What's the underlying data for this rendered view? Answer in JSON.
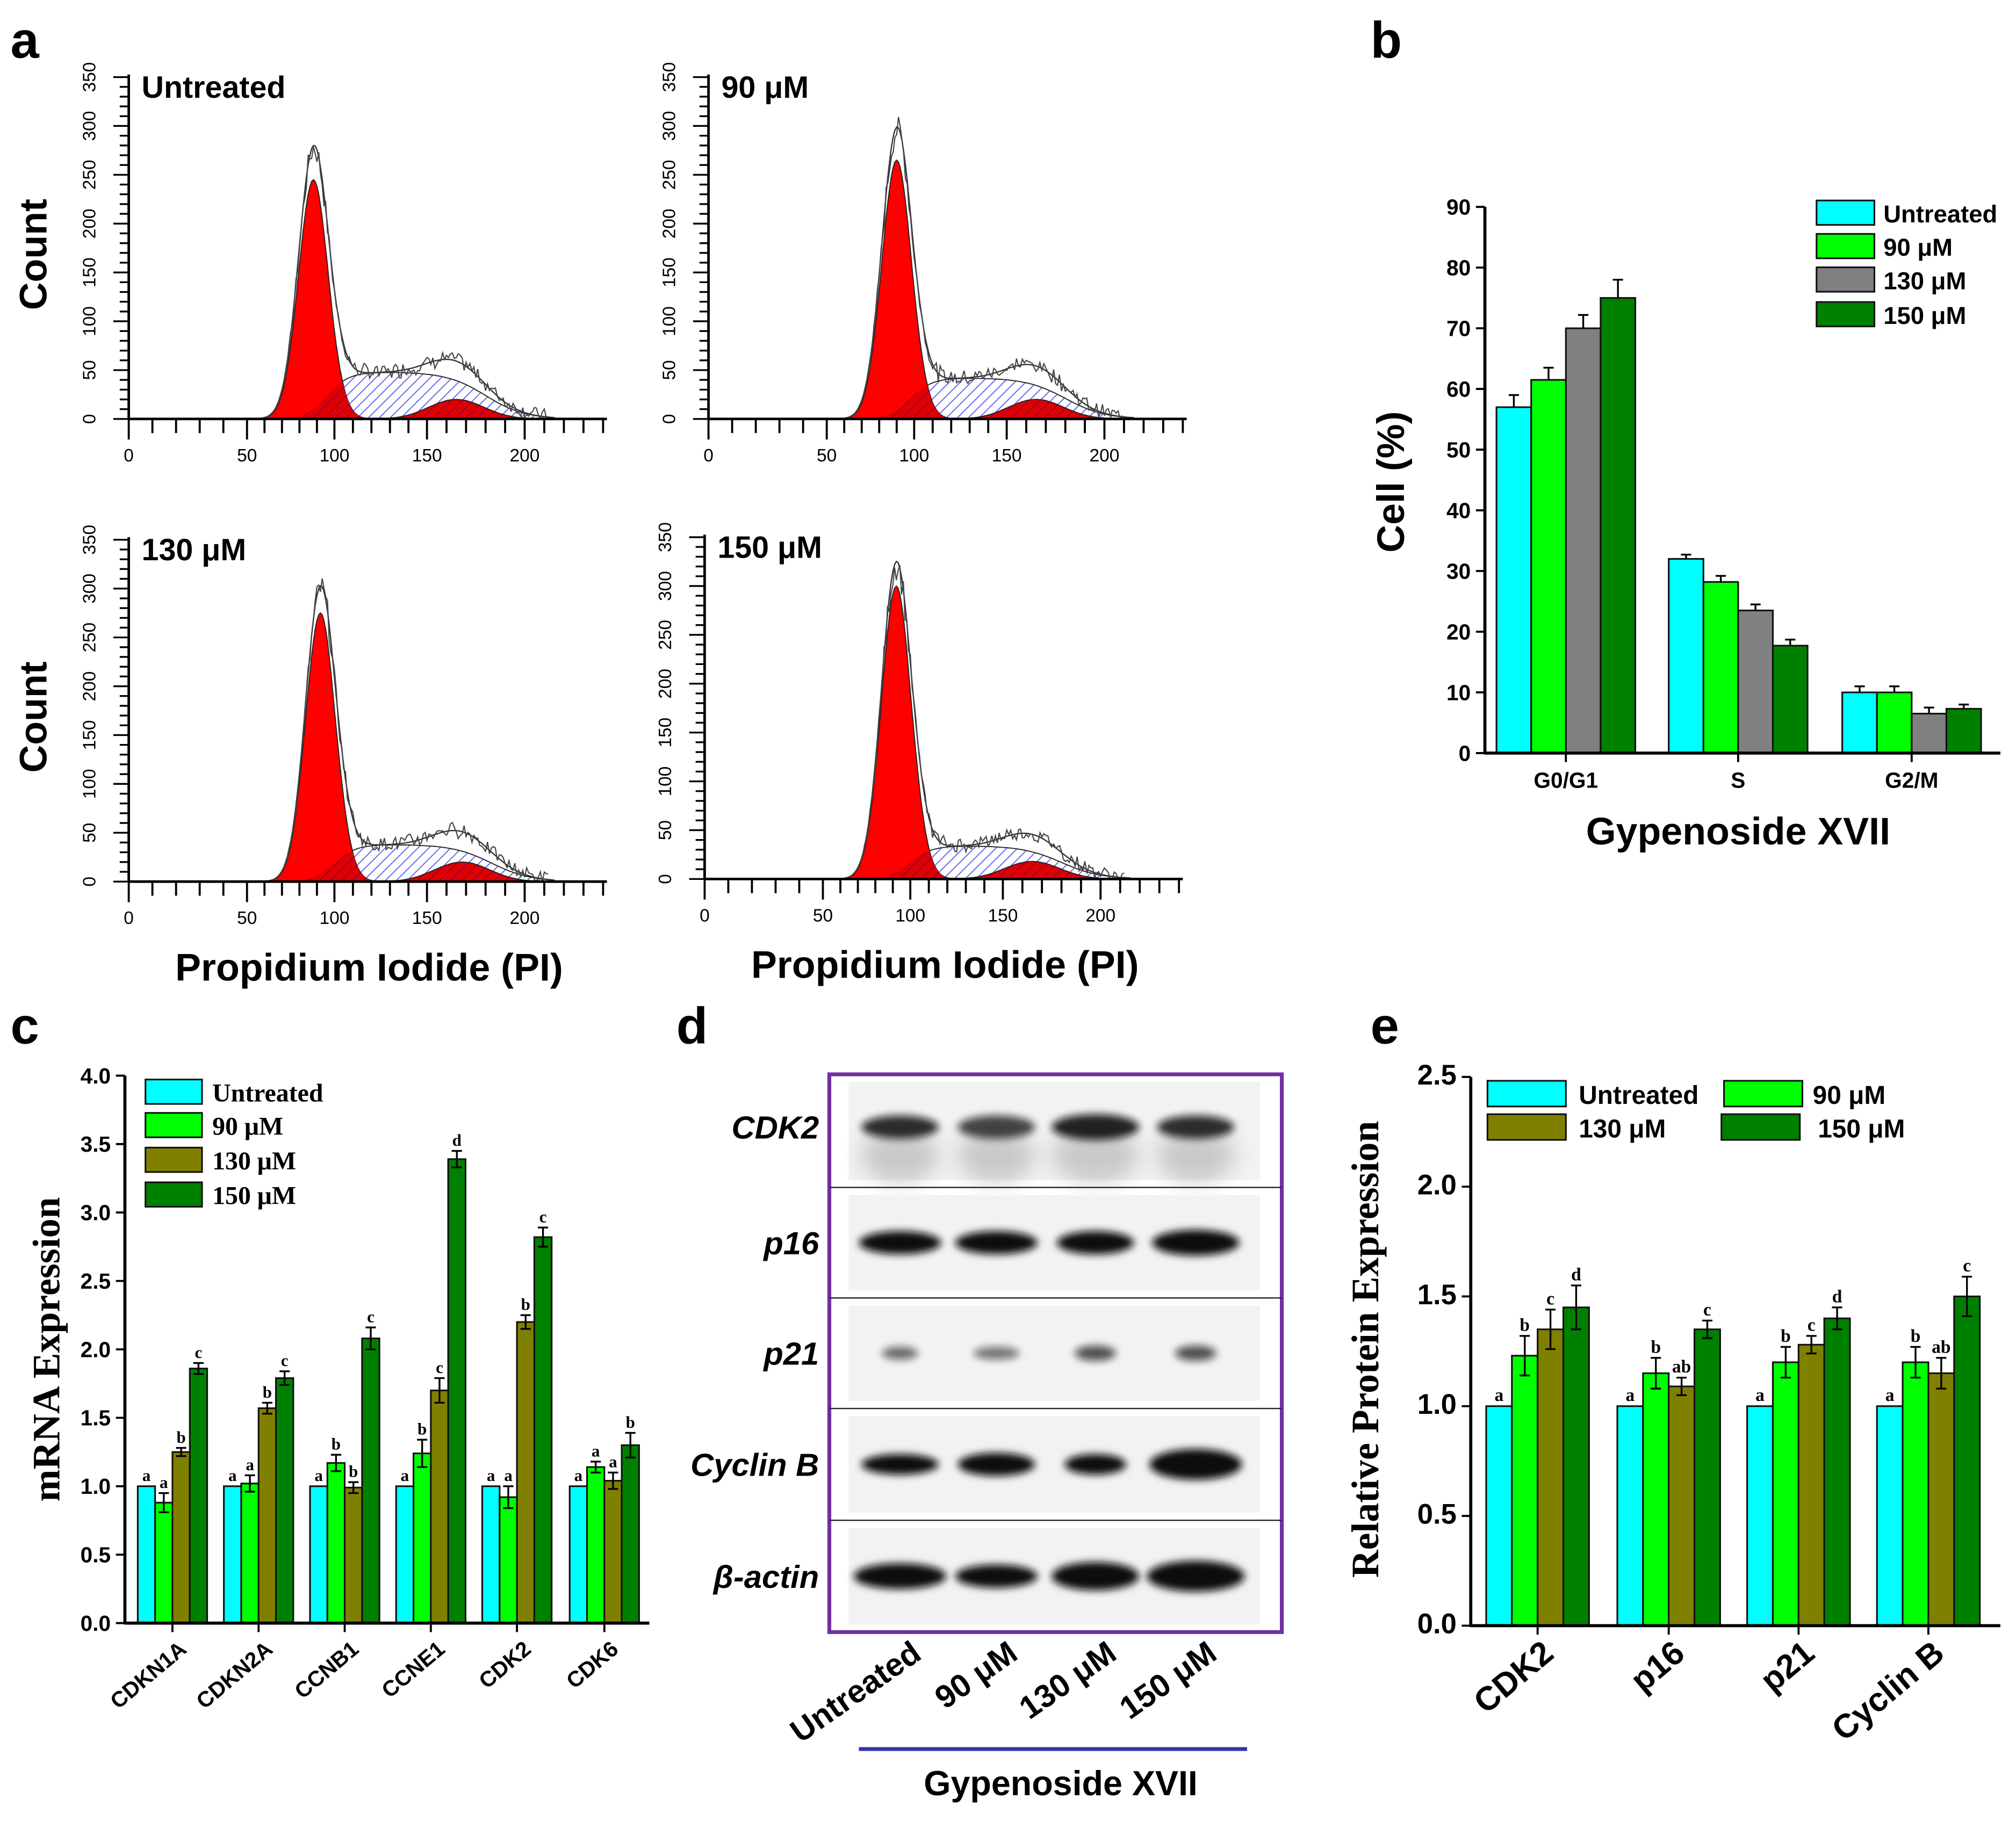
{
  "panel_letters": [
    "a",
    "b",
    "c",
    "d",
    "e"
  ],
  "colors": {
    "untreated": "#00FFFF",
    "c90": "#00FF00",
    "c130_gray": "#808080",
    "c130_olive": "#808000",
    "c150": "#008000",
    "g1_fill": "#FF0000",
    "s_hatch": "#6666EE",
    "blot_frame": "#7030A0",
    "underline": "#3333AA"
  },
  "chart_data": [
    {
      "id": "a",
      "type": "histogram",
      "xlabel": "Propidium Iodide (PI)",
      "ylabel": "Count",
      "xticks": [
        "0",
        "50",
        "100",
        "150",
        "200"
      ],
      "yticks": [
        "0",
        "50",
        "100",
        "150",
        "200",
        "250",
        "300",
        "350"
      ],
      "xlim": [
        0,
        240
      ],
      "ylim": [
        0,
        350
      ],
      "panels": [
        {
          "title": "Untreated",
          "g1_peak_channel": 88,
          "g1_count": 245,
          "envelope_peak": 270,
          "s_count": 48,
          "g2_peak_channel": 165,
          "g2_count": 20
        },
        {
          "title": "90 μM",
          "g1_peak_channel": 90,
          "g1_count": 265,
          "envelope_peak": 290,
          "s_count": 42,
          "g2_peak_channel": 165,
          "g2_count": 20
        },
        {
          "title": "130 μM",
          "g1_peak_channel": 92,
          "g1_count": 275,
          "envelope_peak": 295,
          "s_count": 38,
          "g2_peak_channel": 168,
          "g2_count": 20
        },
        {
          "title": "150 μM",
          "g1_peak_channel": 92,
          "g1_count": 300,
          "envelope_peak": 318,
          "s_count": 34,
          "g2_peak_channel": 165,
          "g2_count": 18
        }
      ]
    },
    {
      "id": "b",
      "type": "bar",
      "title": "",
      "xlabel": "Gypenoside XVII",
      "ylabel": "Cell (%)",
      "ylim": [
        0,
        90
      ],
      "yticks": [
        "0",
        "10",
        "20",
        "30",
        "40",
        "50",
        "60",
        "70",
        "80",
        "90"
      ],
      "categories": [
        "G0/G1",
        "S",
        "G2/M"
      ],
      "legend_position": "top-right",
      "series": [
        {
          "name": "Untreated",
          "values": [
            57,
            32,
            10
          ],
          "errors": [
            2,
            0.7,
            1
          ]
        },
        {
          "name": "90 μM",
          "values": [
            61.5,
            28.2,
            10
          ],
          "errors": [
            2,
            1,
            1
          ]
        },
        {
          "name": "130 μM",
          "values": [
            70,
            23.5,
            6.5
          ],
          "errors": [
            2.2,
            1,
            1
          ]
        },
        {
          "name": "150 μM",
          "values": [
            75,
            17.7,
            7.3
          ],
          "errors": [
            3,
            1,
            0.7
          ]
        }
      ]
    },
    {
      "id": "c",
      "type": "bar",
      "xlabel": "",
      "ylabel": "mRNA Expression",
      "ylim": [
        0,
        4
      ],
      "yticks": [
        "0.0",
        "0.5",
        "1.0",
        "1.5",
        "2.0",
        "2.5",
        "3.0",
        "3.5",
        "4.0"
      ],
      "categories": [
        "CDKN1A",
        "CDKN2A",
        "CCNB1",
        "CCNE1",
        "CDK2",
        "CDK6"
      ],
      "legend_position": "top-left",
      "series": [
        {
          "name": "Untreated",
          "values": [
            1.0,
            1.0,
            1.0,
            1.0,
            1.0,
            1.0
          ],
          "errors": [
            0,
            0,
            0,
            0,
            0,
            0
          ],
          "letters": [
            "a",
            "a",
            "a",
            "a",
            "a",
            "a"
          ]
        },
        {
          "name": "90 μM",
          "values": [
            0.88,
            1.02,
            1.17,
            1.24,
            0.92,
            1.14
          ],
          "errors": [
            0.07,
            0.06,
            0.06,
            0.1,
            0.08,
            0.04
          ],
          "letters": [
            "a",
            "a",
            "b",
            "b",
            "a",
            "a"
          ]
        },
        {
          "name": "130 μM",
          "values": [
            1.25,
            1.57,
            0.99,
            1.7,
            2.2,
            1.04
          ],
          "errors": [
            0.03,
            0.04,
            0.04,
            0.09,
            0.05,
            0.06
          ],
          "letters": [
            "b",
            "b",
            "b",
            "c",
            "b",
            "a"
          ]
        },
        {
          "name": "150 μM",
          "values": [
            1.86,
            1.79,
            2.08,
            3.39,
            2.82,
            1.3
          ],
          "errors": [
            0.04,
            0.05,
            0.08,
            0.06,
            0.07,
            0.09
          ],
          "letters": [
            "c",
            "c",
            "c",
            "d",
            "c",
            "b"
          ]
        }
      ]
    },
    {
      "id": "d",
      "type": "western_blot",
      "proteins": [
        "CDK2",
        "p16",
        "p21",
        "Cyclin B",
        "β-actin"
      ],
      "lanes": [
        "Untreated",
        "90 μM",
        "130 μM",
        "150 μM"
      ],
      "treatment_label": "Gypenoside XVII"
    },
    {
      "id": "e",
      "type": "bar",
      "xlabel": "",
      "ylabel": "Relative Protein Expression",
      "ylim": [
        0,
        2.5
      ],
      "yticks": [
        "0.0",
        "0.5",
        "1.0",
        "1.5",
        "2.0",
        "2.5"
      ],
      "categories": [
        "CDK2",
        "p16",
        "p21",
        "Cyclin B"
      ],
      "legend_position": "top",
      "series": [
        {
          "name": "Untreated",
          "values": [
            1.0,
            1.0,
            1.0,
            1.0
          ],
          "errors": [
            0,
            0,
            0,
            0
          ],
          "letters": [
            "a",
            "a",
            "a",
            "a"
          ]
        },
        {
          "name": "90 μM",
          "values": [
            1.23,
            1.15,
            1.2,
            1.2
          ],
          "errors": [
            0.09,
            0.07,
            0.07,
            0.07
          ],
          "letters": [
            "b",
            "b",
            "b",
            "b"
          ]
        },
        {
          "name": "130 μM",
          "values": [
            1.35,
            1.09,
            1.28,
            1.15
          ],
          "errors": [
            0.09,
            0.04,
            0.04,
            0.07
          ],
          "letters": [
            "c",
            "ab",
            "c",
            "ab"
          ]
        },
        {
          "name": "150 μM",
          "values": [
            1.45,
            1.35,
            1.4,
            1.5
          ],
          "errors": [
            0.1,
            0.04,
            0.05,
            0.09
          ],
          "letters": [
            "d",
            "c",
            "d",
            "c"
          ]
        }
      ]
    }
  ]
}
